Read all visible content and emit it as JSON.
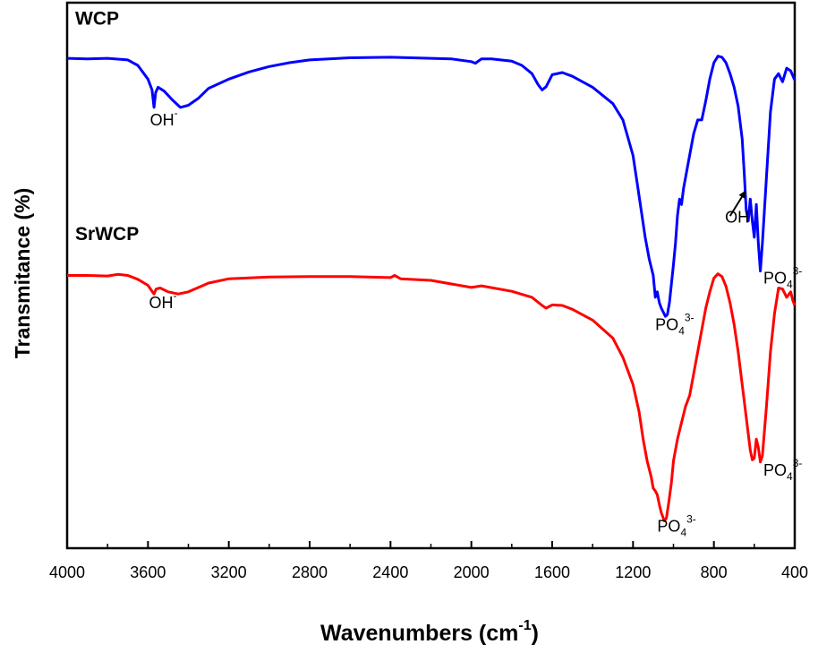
{
  "chart_data": {
    "type": "line",
    "xlabel": "Wavenumbers (cm",
    "xlabel_sup": "-1",
    "xlabel_close": ")",
    "ylabel": "Transmitance (%)",
    "xlim": [
      4000,
      400
    ],
    "x_reversed": true,
    "xticks": [
      4000,
      3600,
      3200,
      2800,
      2400,
      2000,
      1600,
      1200,
      800,
      400
    ],
    "xtick_labels": [
      "4000",
      "3600",
      "3200",
      "2800",
      "2400",
      "2000",
      "1600",
      "1200",
      "800",
      "400"
    ],
    "ylim": [
      0,
      1
    ],
    "y_ticks_visible": false,
    "grid": false,
    "series": [
      {
        "name": "WCP",
        "color": "#0000ff",
        "points": [
          [
            4000,
            0.898
          ],
          [
            3900,
            0.897
          ],
          [
            3800,
            0.898
          ],
          [
            3700,
            0.895
          ],
          [
            3650,
            0.885
          ],
          [
            3600,
            0.86
          ],
          [
            3580,
            0.84
          ],
          [
            3570,
            0.808
          ],
          [
            3562,
            0.835
          ],
          [
            3550,
            0.845
          ],
          [
            3520,
            0.838
          ],
          [
            3480,
            0.822
          ],
          [
            3440,
            0.808
          ],
          [
            3400,
            0.812
          ],
          [
            3350,
            0.825
          ],
          [
            3300,
            0.843
          ],
          [
            3200,
            0.86
          ],
          [
            3100,
            0.873
          ],
          [
            3000,
            0.883
          ],
          [
            2900,
            0.89
          ],
          [
            2800,
            0.895
          ],
          [
            2600,
            0.899
          ],
          [
            2400,
            0.9
          ],
          [
            2200,
            0.898
          ],
          [
            2100,
            0.897
          ],
          [
            2000,
            0.892
          ],
          [
            1980,
            0.889
          ],
          [
            1950,
            0.897
          ],
          [
            1900,
            0.897
          ],
          [
            1800,
            0.893
          ],
          [
            1750,
            0.885
          ],
          [
            1700,
            0.87
          ],
          [
            1670,
            0.85
          ],
          [
            1650,
            0.84
          ],
          [
            1630,
            0.846
          ],
          [
            1600,
            0.868
          ],
          [
            1550,
            0.872
          ],
          [
            1500,
            0.865
          ],
          [
            1400,
            0.845
          ],
          [
            1300,
            0.815
          ],
          [
            1250,
            0.785
          ],
          [
            1200,
            0.72
          ],
          [
            1180,
            0.67
          ],
          [
            1160,
            0.62
          ],
          [
            1140,
            0.57
          ],
          [
            1120,
            0.53
          ],
          [
            1100,
            0.5
          ],
          [
            1090,
            0.46
          ],
          [
            1080,
            0.47
          ],
          [
            1070,
            0.45
          ],
          [
            1060,
            0.44
          ],
          [
            1040,
            0.425
          ],
          [
            1030,
            0.428
          ],
          [
            1020,
            0.45
          ],
          [
            1000,
            0.52
          ],
          [
            990,
            0.56
          ],
          [
            980,
            0.61
          ],
          [
            970,
            0.64
          ],
          [
            960,
            0.63
          ],
          [
            950,
            0.66
          ],
          [
            930,
            0.7
          ],
          [
            900,
            0.76
          ],
          [
            880,
            0.785
          ],
          [
            860,
            0.785
          ],
          [
            840,
            0.82
          ],
          [
            820,
            0.86
          ],
          [
            800,
            0.89
          ],
          [
            780,
            0.902
          ],
          [
            760,
            0.9
          ],
          [
            740,
            0.89
          ],
          [
            720,
            0.87
          ],
          [
            700,
            0.845
          ],
          [
            680,
            0.81
          ],
          [
            660,
            0.75
          ],
          [
            650,
            0.69
          ],
          [
            640,
            0.62
          ],
          [
            630,
            0.6
          ],
          [
            620,
            0.64
          ],
          [
            610,
            0.6
          ],
          [
            600,
            0.57
          ],
          [
            590,
            0.63
          ],
          [
            580,
            0.56
          ],
          [
            570,
            0.508
          ],
          [
            560,
            0.56
          ],
          [
            540,
            0.68
          ],
          [
            520,
            0.8
          ],
          [
            500,
            0.86
          ],
          [
            480,
            0.87
          ],
          [
            460,
            0.855
          ],
          [
            440,
            0.88
          ],
          [
            420,
            0.875
          ],
          [
            400,
            0.858
          ]
        ]
      },
      {
        "name": "SrWCP",
        "color": "#ff0000",
        "points": [
          [
            4000,
            0.5
          ],
          [
            3900,
            0.5
          ],
          [
            3800,
            0.499
          ],
          [
            3750,
            0.502
          ],
          [
            3700,
            0.5
          ],
          [
            3650,
            0.493
          ],
          [
            3600,
            0.482
          ],
          [
            3580,
            0.471
          ],
          [
            3570,
            0.466
          ],
          [
            3560,
            0.475
          ],
          [
            3540,
            0.477
          ],
          [
            3500,
            0.47
          ],
          [
            3450,
            0.466
          ],
          [
            3400,
            0.47
          ],
          [
            3350,
            0.478
          ],
          [
            3300,
            0.486
          ],
          [
            3200,
            0.494
          ],
          [
            3000,
            0.497
          ],
          [
            2800,
            0.498
          ],
          [
            2600,
            0.498
          ],
          [
            2400,
            0.496
          ],
          [
            2380,
            0.5
          ],
          [
            2350,
            0.494
          ],
          [
            2200,
            0.491
          ],
          [
            2000,
            0.478
          ],
          [
            1950,
            0.481
          ],
          [
            1800,
            0.471
          ],
          [
            1700,
            0.46
          ],
          [
            1650,
            0.445
          ],
          [
            1630,
            0.44
          ],
          [
            1600,
            0.446
          ],
          [
            1550,
            0.445
          ],
          [
            1500,
            0.438
          ],
          [
            1400,
            0.418
          ],
          [
            1300,
            0.385
          ],
          [
            1250,
            0.35
          ],
          [
            1200,
            0.3
          ],
          [
            1170,
            0.25
          ],
          [
            1150,
            0.2
          ],
          [
            1130,
            0.16
          ],
          [
            1110,
            0.13
          ],
          [
            1100,
            0.11
          ],
          [
            1090,
            0.105
          ],
          [
            1080,
            0.098
          ],
          [
            1070,
            0.08
          ],
          [
            1060,
            0.065
          ],
          [
            1045,
            0.05
          ],
          [
            1035,
            0.055
          ],
          [
            1025,
            0.08
          ],
          [
            1010,
            0.12
          ],
          [
            1000,
            0.16
          ],
          [
            980,
            0.2
          ],
          [
            960,
            0.23
          ],
          [
            940,
            0.26
          ],
          [
            920,
            0.28
          ],
          [
            900,
            0.32
          ],
          [
            880,
            0.36
          ],
          [
            860,
            0.4
          ],
          [
            840,
            0.44
          ],
          [
            820,
            0.47
          ],
          [
            800,
            0.495
          ],
          [
            780,
            0.503
          ],
          [
            760,
            0.498
          ],
          [
            740,
            0.48
          ],
          [
            720,
            0.45
          ],
          [
            700,
            0.41
          ],
          [
            680,
            0.36
          ],
          [
            660,
            0.3
          ],
          [
            640,
            0.24
          ],
          [
            620,
            0.18
          ],
          [
            610,
            0.162
          ],
          [
            600,
            0.165
          ],
          [
            590,
            0.2
          ],
          [
            580,
            0.185
          ],
          [
            570,
            0.158
          ],
          [
            560,
            0.17
          ],
          [
            540,
            0.26
          ],
          [
            520,
            0.36
          ],
          [
            500,
            0.43
          ],
          [
            480,
            0.477
          ],
          [
            460,
            0.475
          ],
          [
            440,
            0.46
          ],
          [
            420,
            0.47
          ],
          [
            410,
            0.455
          ],
          [
            400,
            0.445
          ]
        ]
      }
    ],
    "series_labels": [
      {
        "text": "WCP",
        "x": 3960,
        "y": 0.96
      },
      {
        "text": "SrWCP",
        "x": 3960,
        "y": 0.565
      }
    ],
    "annotations": [
      {
        "base": "OH",
        "sup": "-",
        "x": 3590,
        "y": 0.775
      },
      {
        "base": "OH",
        "sup": "-",
        "x": 3595,
        "y": 0.44
      },
      {
        "base": "PO",
        "sub": "4",
        "sup": "3-",
        "x": 1090,
        "y": 0.4
      },
      {
        "base": "OH",
        "sup": "-",
        "x": 745,
        "y": 0.597
      },
      {
        "base": "PO",
        "sub": "4",
        "sup": "3-",
        "x": 555,
        "y": 0.485
      },
      {
        "base": "PO",
        "sub": "4",
        "sup": "3-",
        "x": 1080,
        "y": 0.03
      },
      {
        "base": "PO",
        "sub": "4",
        "sup": "3-",
        "x": 555,
        "y": 0.133
      }
    ],
    "arrow": {
      "from": [
        720,
        0.609
      ],
      "to": [
        643,
        0.655
      ]
    }
  }
}
